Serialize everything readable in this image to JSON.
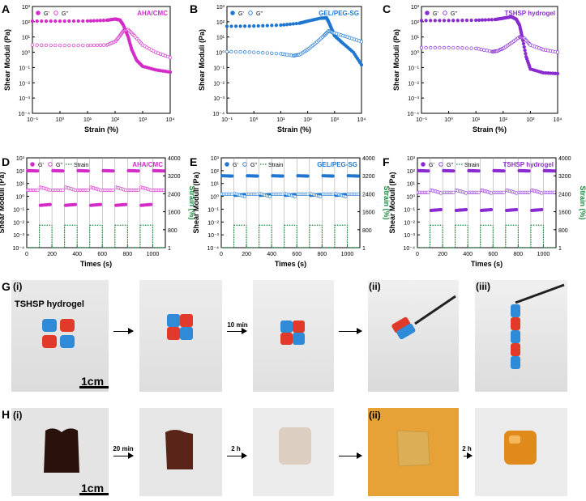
{
  "panel_letters": [
    "A",
    "B",
    "C",
    "D",
    "E",
    "F",
    "G",
    "H"
  ],
  "colors": {
    "magenta": "#d42cc8",
    "blue": "#1f77d0",
    "purple": "#8a2bd0",
    "green": "#1a8a3a",
    "axis": "#000000"
  },
  "chart_data": [
    {
      "id": "A",
      "type": "scatter",
      "title": "AHA/CMC",
      "xlabel": "Strain (%)",
      "ylabel": "Shear Moduli (Pa)",
      "xscale": "log",
      "yscale": "log",
      "xlim": [
        0.1,
        10000
      ],
      "ylim": [
        0.0001,
        1000
      ],
      "xticks": [
        "10⁻¹",
        "10⁰",
        "10¹",
        "10²",
        "10³",
        "10⁴"
      ],
      "yticks": [
        "10⁻⁴",
        "10⁻³",
        "10⁻²",
        "10⁻¹",
        "10⁰",
        "10¹",
        "10²",
        "10³"
      ],
      "legend": [
        "G'",
        "G\""
      ],
      "color": "#d42cc8",
      "series": [
        {
          "name": "G'",
          "filled": true,
          "points": [
            [
              0.1,
              110
            ],
            [
              1,
              110
            ],
            [
              10,
              112
            ],
            [
              50,
              125
            ],
            [
              100,
              150
            ],
            [
              150,
              130
            ],
            [
              200,
              60
            ],
            [
              300,
              10
            ],
            [
              400,
              1.5
            ],
            [
              600,
              0.3
            ],
            [
              1000,
              0.12
            ],
            [
              3000,
              0.07
            ],
            [
              10000,
              0.05
            ]
          ]
        },
        {
          "name": "G\"",
          "filled": false,
          "points": [
            [
              0.1,
              3
            ],
            [
              1,
              2.8
            ],
            [
              10,
              2.8
            ],
            [
              50,
              3
            ],
            [
              100,
              5
            ],
            [
              150,
              12
            ],
            [
              200,
              25
            ],
            [
              300,
              30
            ],
            [
              500,
              12
            ],
            [
              1000,
              3
            ],
            [
              3000,
              1
            ],
            [
              10000,
              0.45
            ]
          ]
        }
      ]
    },
    {
      "id": "B",
      "type": "scatter",
      "title": "GEL/PEG-SG",
      "xlabel": "Strain (%)",
      "ylabel": "Shear Moduli (Pa)",
      "xscale": "log",
      "yscale": "log",
      "xlim": [
        0.1,
        10000
      ],
      "ylim": [
        0.0001,
        1000
      ],
      "xticks": [
        "10⁻¹",
        "10⁰",
        "10¹",
        "10²",
        "10³",
        "10⁴"
      ],
      "yticks": [
        "10⁻⁴",
        "10⁻³",
        "10⁻²",
        "10⁻¹",
        "10⁰",
        "10¹",
        "10²",
        "10³"
      ],
      "legend": [
        "G'",
        "G\""
      ],
      "color": "#1f77d0",
      "series": [
        {
          "name": "G'",
          "filled": true,
          "points": [
            [
              0.1,
              50
            ],
            [
              1,
              52
            ],
            [
              10,
              60
            ],
            [
              50,
              80
            ],
            [
              100,
              110
            ],
            [
              300,
              170
            ],
            [
              500,
              180
            ],
            [
              600,
              100
            ],
            [
              800,
              30
            ],
            [
              1000,
              12
            ],
            [
              2000,
              4
            ],
            [
              5000,
              1
            ],
            [
              10000,
              0.15
            ]
          ]
        },
        {
          "name": "G\"",
          "filled": false,
          "points": [
            [
              0.1,
              1.1
            ],
            [
              1,
              1
            ],
            [
              10,
              0.8
            ],
            [
              30,
              0.6
            ],
            [
              50,
              0.7
            ],
            [
              100,
              1.5
            ],
            [
              200,
              4
            ],
            [
              400,
              12
            ],
            [
              600,
              25
            ],
            [
              1000,
              18
            ],
            [
              3000,
              10
            ],
            [
              10000,
              5
            ]
          ]
        }
      ]
    },
    {
      "id": "C",
      "type": "scatter",
      "title": "TSHSP hydrogel",
      "xlabel": "Strain (%)",
      "ylabel": "Shear Moduli (Pa)",
      "xscale": "log",
      "yscale": "log",
      "xlim": [
        0.1,
        10000
      ],
      "ylim": [
        0.0001,
        1000
      ],
      "xticks": [
        "10⁻¹",
        "10⁰",
        "10¹",
        "10²",
        "10³",
        "10⁴"
      ],
      "yticks": [
        "10⁻⁴",
        "10⁻³",
        "10⁻²",
        "10⁻¹",
        "10⁰",
        "10¹",
        "10²",
        "10³"
      ],
      "legend": [
        "G'",
        "G\""
      ],
      "color": "#8a2bd0",
      "series": [
        {
          "name": "G'",
          "filled": true,
          "points": [
            [
              0.1,
              120
            ],
            [
              1,
              120
            ],
            [
              10,
              125
            ],
            [
              50,
              140
            ],
            [
              100,
              170
            ],
            [
              200,
              210
            ],
            [
              300,
              150
            ],
            [
              400,
              60
            ],
            [
              500,
              10
            ],
            [
              700,
              0.5
            ],
            [
              1000,
              0.08
            ],
            [
              3000,
              0.045
            ],
            [
              10000,
              0.04
            ]
          ]
        },
        {
          "name": "G\"",
          "filled": false,
          "points": [
            [
              0.1,
              2
            ],
            [
              1,
              2
            ],
            [
              10,
              1.8
            ],
            [
              40,
              1.1
            ],
            [
              60,
              1.2
            ],
            [
              100,
              1.8
            ],
            [
              200,
              4
            ],
            [
              400,
              10
            ],
            [
              600,
              8
            ],
            [
              1000,
              3
            ],
            [
              3000,
              1.5
            ],
            [
              10000,
              1
            ]
          ]
        }
      ]
    },
    {
      "id": "D",
      "type": "line",
      "title": "AHA/CMC",
      "xlabel": "Times (s)",
      "ylabel": "Shear Moduli (Pa)",
      "ylabel2": "Strain (%)",
      "xlim": [
        0,
        1100
      ],
      "ylim": [
        0.0001,
        1000
      ],
      "y2lim": [
        1,
        4000
      ],
      "xticks": [
        "0",
        "200",
        "400",
        "600",
        "800",
        "1000"
      ],
      "yticks": [
        "10⁻⁴",
        "10⁻³",
        "10⁻²",
        "10⁻¹",
        "10⁰",
        "10¹",
        "10²",
        "10³"
      ],
      "y2ticks": [
        "1",
        "800",
        "1600",
        "2400",
        "3200",
        "4000"
      ],
      "legend": [
        "G'",
        "G\"",
        "Strain"
      ],
      "color": "#d42cc8",
      "cycles": [
        [
          0,
          100
        ],
        [
          100,
          200
        ],
        [
          200,
          300
        ],
        [
          300,
          400
        ],
        [
          400,
          500
        ],
        [
          500,
          600
        ],
        [
          600,
          700
        ],
        [
          700,
          800
        ],
        [
          800,
          900
        ],
        [
          900,
          1000
        ],
        [
          1000,
          1100
        ]
      ],
      "low_G1": 100,
      "low_G2": 3,
      "high_G1": 0.2,
      "high_G2": 5,
      "strain_low": 1,
      "strain_high": 1000
    },
    {
      "id": "E",
      "type": "line",
      "title": "GEL/PEG-SG",
      "xlabel": "Times (s)",
      "ylabel": "Shear Moduli (Pa)",
      "ylabel2": "Strain (%)",
      "xlim": [
        0,
        1100
      ],
      "ylim": [
        0.0001,
        1000
      ],
      "y2lim": [
        1,
        4000
      ],
      "xticks": [
        "0",
        "200",
        "400",
        "600",
        "800",
        "1000"
      ],
      "yticks": [
        "10⁻⁴",
        "10⁻³",
        "10⁻²",
        "10⁻¹",
        "10⁰",
        "10¹",
        "10²",
        "10³"
      ],
      "y2ticks": [
        "1",
        "800",
        "1600",
        "2400",
        "3200",
        "4000"
      ],
      "legend": [
        "G'",
        "G\"",
        "Strain"
      ],
      "color": "#1f77d0",
      "low_G1": 40,
      "low_G2": 1.5,
      "high_G1": 1.2,
      "high_G2": 1.6,
      "strain_low": 1,
      "strain_high": 1000
    },
    {
      "id": "F",
      "type": "line",
      "title": "TSHSP hydrogel",
      "xlabel": "Times (s)",
      "ylabel": "Shear Moduli (Pa)",
      "ylabel2": "Strain (%)",
      "xlim": [
        0,
        1100
      ],
      "ylim": [
        0.0001,
        1000
      ],
      "y2lim": [
        1,
        4000
      ],
      "xticks": [
        "0",
        "200",
        "400",
        "600",
        "800",
        "1000"
      ],
      "yticks": [
        "10⁻⁴",
        "10⁻³",
        "10⁻²",
        "10⁻¹",
        "10⁰",
        "10¹",
        "10²",
        "10³"
      ],
      "y2ticks": [
        "1",
        "800",
        "1600",
        "2400",
        "3200",
        "4000"
      ],
      "legend": [
        "G'",
        "G\"",
        "Strain"
      ],
      "color": "#8a2bd0",
      "low_G1": 100,
      "low_G2": 2,
      "high_G1": 0.08,
      "high_G2": 3,
      "strain_low": 1,
      "strain_high": 1000
    }
  ],
  "row_g": {
    "letter": "G",
    "sub": [
      "(i)",
      "(ii)",
      "(iii)"
    ],
    "caption": "TSHSP hydrogel",
    "arrow_label": "10 min",
    "scale": "1cm"
  },
  "row_h": {
    "letter": "H",
    "sub": [
      "(i)",
      "(ii)"
    ],
    "arrow_labels": [
      "20 min",
      "2 h",
      "2 h"
    ],
    "scale": "1cm"
  }
}
